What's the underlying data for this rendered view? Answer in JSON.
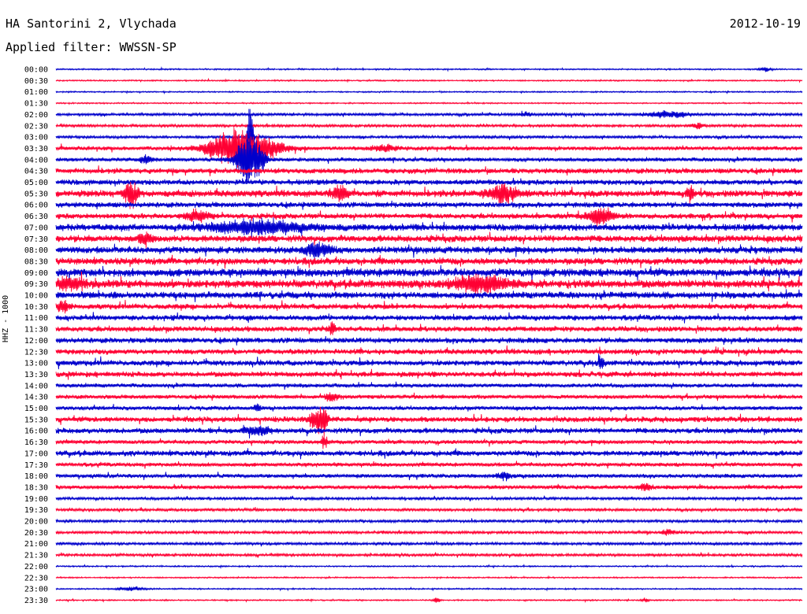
{
  "header": {
    "station": "HA Santorini 2, Vlychada",
    "date": "2012-10-19",
    "filter": "Applied filter: WWSSN-SP"
  },
  "chart_data": {
    "type": "line",
    "title": "HA Santorini 2, Vlychada",
    "ylabel": "HHZ - 1000",
    "trace_colors": [
      "#0000cc",
      "#ff0033"
    ],
    "y_tick_labels": [
      "00:00",
      "00:30",
      "01:00",
      "01:30",
      "02:00",
      "02:30",
      "03:00",
      "03:30",
      "04:00",
      "04:30",
      "05:00",
      "05:30",
      "06:00",
      "06:30",
      "07:00",
      "07:30",
      "08:00",
      "08:30",
      "09:00",
      "09:30",
      "10:00",
      "10:30",
      "11:00",
      "11:30",
      "12:00",
      "12:30",
      "13:00",
      "13:30",
      "14:00",
      "14:30",
      "15:00",
      "15:30",
      "16:00",
      "16:30",
      "17:00",
      "17:30",
      "18:00",
      "18:30",
      "19:00",
      "19:30",
      "20:00",
      "20:30",
      "21:00",
      "21:30",
      "22:00",
      "22:30",
      "23:00",
      "23:30"
    ],
    "noise_level": [
      1,
      1,
      1,
      1,
      2,
      2,
      2,
      3,
      3,
      4,
      4,
      5,
      4,
      4,
      5,
      5,
      5,
      5,
      6,
      6,
      5,
      4,
      4,
      4,
      4,
      4,
      4,
      4,
      3,
      3,
      3,
      4,
      4,
      3,
      4,
      3,
      3,
      3,
      2,
      2,
      2,
      2,
      2,
      2,
      1,
      1,
      1,
      1
    ],
    "events": [
      {
        "row": 0,
        "x": 0.95,
        "amp": 3,
        "width": 0.01
      },
      {
        "row": 4,
        "x": 0.82,
        "amp": 5,
        "width": 0.03
      },
      {
        "row": 4,
        "x": 0.63,
        "amp": 3,
        "width": 0.01
      },
      {
        "row": 5,
        "x": 0.86,
        "amp": 4,
        "width": 0.01
      },
      {
        "row": 6,
        "x": 0.26,
        "amp": 95,
        "width": 0.004
      },
      {
        "row": 7,
        "x": 0.25,
        "amp": 30,
        "width": 0.05
      },
      {
        "row": 7,
        "x": 0.44,
        "amp": 4,
        "width": 0.02
      },
      {
        "row": 8,
        "x": 0.26,
        "amp": 40,
        "width": 0.02
      },
      {
        "row": 8,
        "x": 0.12,
        "amp": 5,
        "width": 0.01
      },
      {
        "row": 11,
        "x": 0.1,
        "amp": 20,
        "width": 0.01
      },
      {
        "row": 11,
        "x": 0.6,
        "amp": 14,
        "width": 0.02
      },
      {
        "row": 11,
        "x": 0.38,
        "amp": 12,
        "width": 0.01
      },
      {
        "row": 11,
        "x": 0.85,
        "amp": 12,
        "width": 0.005
      },
      {
        "row": 13,
        "x": 0.73,
        "amp": 12,
        "width": 0.02
      },
      {
        "row": 13,
        "x": 0.19,
        "amp": 8,
        "width": 0.02
      },
      {
        "row": 14,
        "x": 0.27,
        "amp": 10,
        "width": 0.07
      },
      {
        "row": 15,
        "x": 0.12,
        "amp": 9,
        "width": 0.01
      },
      {
        "row": 16,
        "x": 0.35,
        "amp": 10,
        "width": 0.02
      },
      {
        "row": 19,
        "x": 0.57,
        "amp": 12,
        "width": 0.04
      },
      {
        "row": 19,
        "x": 0.02,
        "amp": 9,
        "width": 0.02
      },
      {
        "row": 21,
        "x": 0.01,
        "amp": 8,
        "width": 0.01
      },
      {
        "row": 23,
        "x": 0.37,
        "amp": 10,
        "width": 0.005
      },
      {
        "row": 26,
        "x": 0.73,
        "amp": 8,
        "width": 0.005
      },
      {
        "row": 29,
        "x": 0.37,
        "amp": 6,
        "width": 0.01
      },
      {
        "row": 30,
        "x": 0.27,
        "amp": 6,
        "width": 0.005
      },
      {
        "row": 31,
        "x": 0.35,
        "amp": 18,
        "width": 0.01
      },
      {
        "row": 31,
        "x": 0.36,
        "amp": 22,
        "width": 0.005
      },
      {
        "row": 32,
        "x": 0.27,
        "amp": 6,
        "width": 0.02
      },
      {
        "row": 33,
        "x": 0.36,
        "amp": 10,
        "width": 0.005
      },
      {
        "row": 36,
        "x": 0.6,
        "amp": 5,
        "width": 0.01
      },
      {
        "row": 37,
        "x": 0.79,
        "amp": 5,
        "width": 0.01
      },
      {
        "row": 41,
        "x": 0.82,
        "amp": 4,
        "width": 0.01
      },
      {
        "row": 46,
        "x": 0.1,
        "amp": 3,
        "width": 0.02
      },
      {
        "row": 47,
        "x": 0.51,
        "amp": 4,
        "width": 0.005
      },
      {
        "row": 47,
        "x": 0.79,
        "amp": 3,
        "width": 0.005
      }
    ]
  }
}
